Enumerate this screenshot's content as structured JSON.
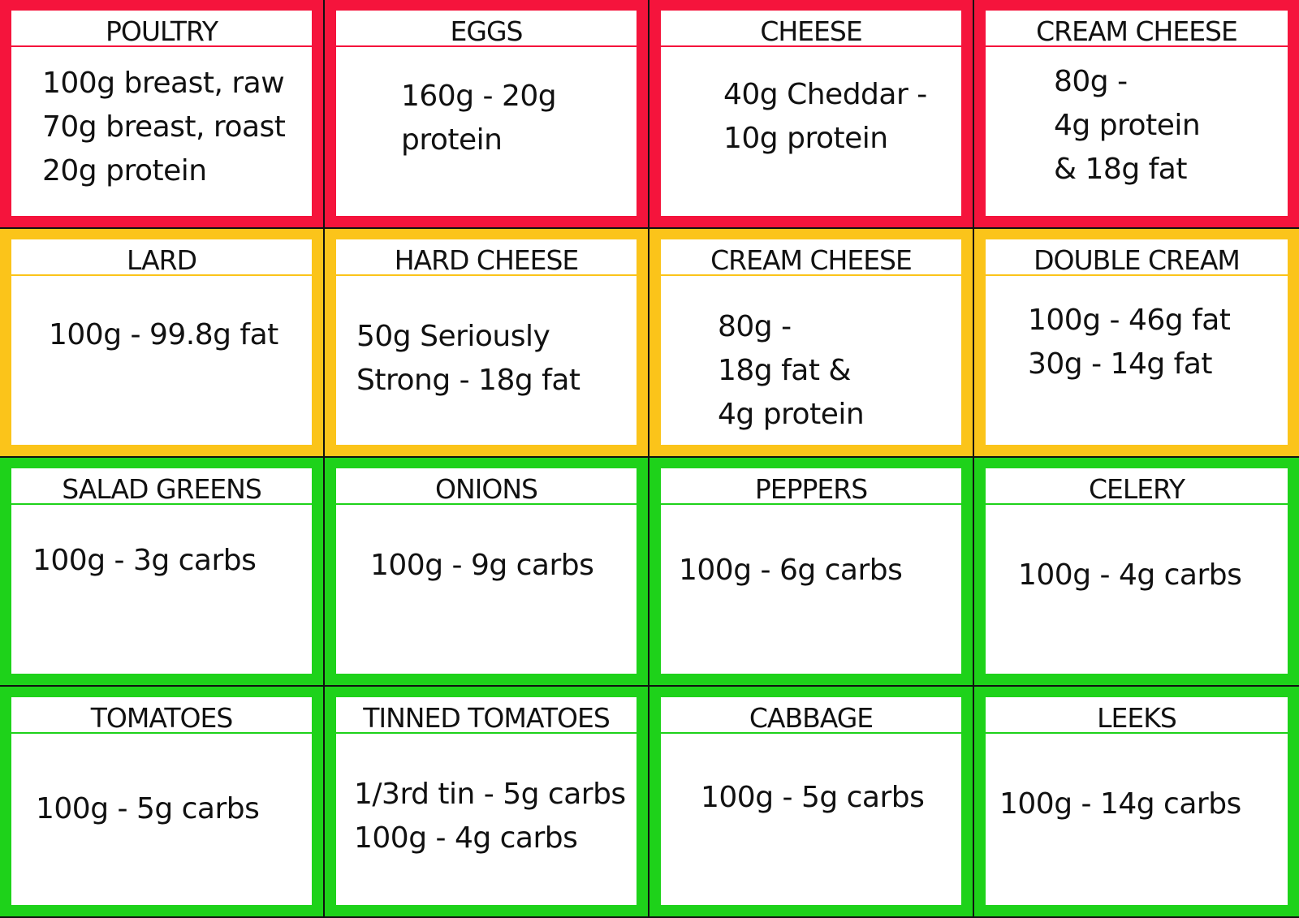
{
  "colors": {
    "protein": "#f5143c",
    "fat": "#fbc41a",
    "carbs": "#1ed21a"
  },
  "cards": [
    {
      "title": "POULTRY",
      "category": "protein",
      "lines": [
        "100g breast, raw",
        "70g breast, roast",
        "20g protein"
      ]
    },
    {
      "title": "EGGS",
      "category": "protein",
      "lines": [
        "160g - 20g",
        "protein"
      ]
    },
    {
      "title": "CHEESE",
      "category": "protein",
      "lines": [
        "40g Cheddar -",
        "10g protein"
      ]
    },
    {
      "title": "CREAM CHEESE",
      "category": "protein",
      "lines": [
        "80g -",
        "4g protein",
        "& 18g fat"
      ]
    },
    {
      "title": "LARD",
      "category": "fat",
      "lines": [
        "100g - 99.8g fat"
      ]
    },
    {
      "title": "HARD CHEESE",
      "category": "fat",
      "lines": [
        "50g Seriously",
        "Strong - 18g fat"
      ]
    },
    {
      "title": "CREAM CHEESE",
      "category": "fat",
      "lines": [
        "80g -",
        "18g fat &",
        "4g protein"
      ]
    },
    {
      "title": "DOUBLE CREAM",
      "category": "fat",
      "lines": [
        "100g - 46g fat",
        "30g - 14g fat"
      ]
    },
    {
      "title": "SALAD GREENS",
      "category": "carbs",
      "lines": [
        "100g - 3g carbs"
      ]
    },
    {
      "title": "ONIONS",
      "category": "carbs",
      "lines": [
        "100g - 9g carbs"
      ]
    },
    {
      "title": "PEPPERS",
      "category": "carbs",
      "lines": [
        "100g - 6g carbs"
      ]
    },
    {
      "title": "CELERY",
      "category": "carbs",
      "lines": [
        "100g - 4g carbs"
      ]
    },
    {
      "title": "TOMATOES",
      "category": "carbs",
      "lines": [
        "100g - 5g carbs"
      ]
    },
    {
      "title": "TINNED TOMATOES",
      "category": "carbs",
      "lines": [
        "1/3rd tin - 5g carbs",
        "100g - 4g carbs"
      ]
    },
    {
      "title": "CABBAGE",
      "category": "carbs",
      "lines": [
        "100g - 5g carbs"
      ]
    },
    {
      "title": "LEEKS",
      "category": "carbs",
      "lines": [
        "100g - 14g carbs"
      ]
    }
  ]
}
